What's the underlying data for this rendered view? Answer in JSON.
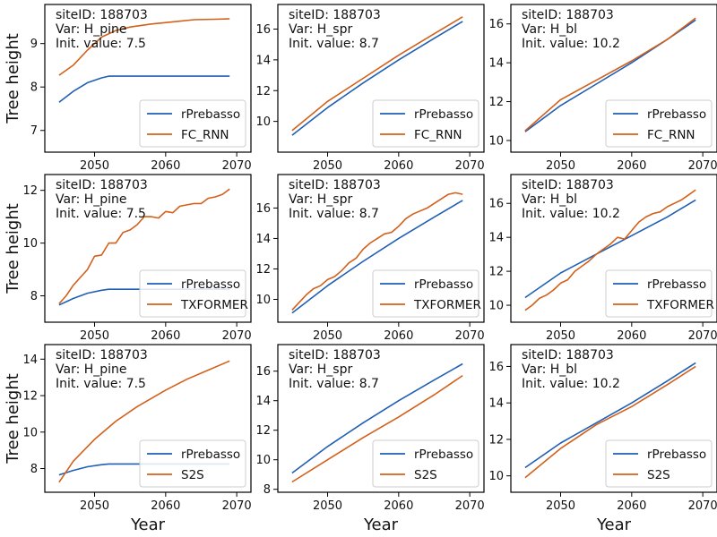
{
  "figure": {
    "xlabel": "Year",
    "ylabel": "Tree height",
    "site_label": "siteID: 188703",
    "series_colors": {
      "rPrebasso": "#1f5fb4",
      "model": "#d2601a"
    }
  },
  "chart_data": [
    {
      "type": "line",
      "row": 0,
      "col": 0,
      "annotations": [
        "siteID: 188703",
        "Var: H_pine",
        "Init. value: 7.5"
      ],
      "xlim": [
        2043,
        2072
      ],
      "ylim": [
        6.5,
        9.9
      ],
      "xticks": [
        2050,
        2060,
        2070
      ],
      "yticks": [
        7,
        8,
        9
      ],
      "xlabel": "",
      "ylabel": "Tree height",
      "legend_loc": "lower-right",
      "series": [
        {
          "name": "rPrebasso",
          "x": [
            2045,
            2047,
            2049,
            2051,
            2052,
            2055,
            2060,
            2065,
            2069
          ],
          "values": [
            7.65,
            7.9,
            8.1,
            8.21,
            8.25,
            8.25,
            8.25,
            8.25,
            8.25
          ]
        },
        {
          "name": "FC_RNN",
          "x": [
            2045,
            2047,
            2049,
            2051,
            2053,
            2055,
            2058,
            2061,
            2064,
            2067,
            2069
          ],
          "values": [
            8.27,
            8.5,
            8.85,
            9.15,
            9.3,
            9.38,
            9.45,
            9.5,
            9.55,
            9.56,
            9.57
          ]
        }
      ]
    },
    {
      "type": "line",
      "row": 0,
      "col": 1,
      "annotations": [
        "siteID: 188703",
        "Var: H_spr",
        "Init. value: 8.7"
      ],
      "xlim": [
        2043,
        2072
      ],
      "ylim": [
        8.0,
        17.6
      ],
      "xticks": [
        2050,
        2060,
        2070
      ],
      "yticks": [
        10,
        12,
        14,
        16
      ],
      "xlabel": "",
      "ylabel": "",
      "legend_loc": "lower-right",
      "series": [
        {
          "name": "rPrebasso",
          "x": [
            2045,
            2050,
            2055,
            2060,
            2065,
            2069
          ],
          "values": [
            9.1,
            10.9,
            12.5,
            14.0,
            15.4,
            16.5
          ]
        },
        {
          "name": "FC_RNN",
          "x": [
            2045,
            2050,
            2055,
            2060,
            2065,
            2069
          ],
          "values": [
            9.4,
            11.3,
            12.8,
            14.3,
            15.7,
            16.8
          ]
        }
      ]
    },
    {
      "type": "line",
      "row": 0,
      "col": 2,
      "annotations": [
        "siteID: 188703",
        "Var: H_bl",
        "Init. value: 10.2"
      ],
      "xlim": [
        2043,
        2072
      ],
      "ylim": [
        9.4,
        17.0
      ],
      "xticks": [
        2050,
        2060,
        2070
      ],
      "yticks": [
        10,
        12,
        14,
        16
      ],
      "xlabel": "",
      "ylabel": "",
      "legend_loc": "lower-right",
      "series": [
        {
          "name": "rPrebasso",
          "x": [
            2045,
            2050,
            2055,
            2060,
            2065,
            2069
          ],
          "values": [
            10.45,
            11.8,
            12.9,
            14.0,
            15.2,
            16.2
          ]
        },
        {
          "name": "FC_RNN",
          "x": [
            2045,
            2050,
            2055,
            2060,
            2065,
            2069
          ],
          "values": [
            10.5,
            12.1,
            13.1,
            14.1,
            15.2,
            16.3
          ]
        }
      ]
    },
    {
      "type": "line",
      "row": 1,
      "col": 0,
      "annotations": [
        "siteID: 188703",
        "Var: H_pine",
        "Init. value: 7.5"
      ],
      "xlim": [
        2043,
        2072
      ],
      "ylim": [
        7.0,
        12.6
      ],
      "xticks": [
        2050,
        2060,
        2070
      ],
      "yticks": [
        8,
        10,
        12
      ],
      "xlabel": "",
      "ylabel": "Tree height",
      "legend_loc": "lower-right",
      "series": [
        {
          "name": "rPrebasso",
          "x": [
            2045,
            2047,
            2049,
            2051,
            2052,
            2055,
            2060,
            2065,
            2069
          ],
          "values": [
            7.65,
            7.9,
            8.1,
            8.21,
            8.25,
            8.25,
            8.25,
            8.25,
            8.25
          ]
        },
        {
          "name": "TXFORMER",
          "x": [
            2045,
            2046,
            2047,
            2048,
            2049,
            2050,
            2051,
            2052,
            2053,
            2054,
            2055,
            2056,
            2057,
            2058,
            2059,
            2060,
            2061,
            2062,
            2063,
            2064,
            2065,
            2066,
            2067,
            2068,
            2069
          ],
          "values": [
            7.7,
            8.0,
            8.4,
            8.7,
            9.0,
            9.5,
            9.55,
            10.0,
            10.0,
            10.4,
            10.5,
            10.7,
            11.0,
            11.0,
            10.95,
            11.2,
            11.15,
            11.4,
            11.45,
            11.5,
            11.5,
            11.7,
            11.75,
            11.85,
            12.05
          ]
        }
      ]
    },
    {
      "type": "line",
      "row": 1,
      "col": 1,
      "annotations": [
        "siteID: 188703",
        "Var: H_spr",
        "Init. value: 8.7"
      ],
      "xlim": [
        2043,
        2072
      ],
      "ylim": [
        8.5,
        18.2
      ],
      "xticks": [
        2050,
        2060,
        2070
      ],
      "yticks": [
        10,
        12,
        14,
        16
      ],
      "xlabel": "",
      "ylabel": "",
      "legend_loc": "lower-right",
      "series": [
        {
          "name": "rPrebasso",
          "x": [
            2045,
            2050,
            2055,
            2060,
            2065,
            2069
          ],
          "values": [
            9.1,
            10.9,
            12.5,
            14.0,
            15.4,
            16.5
          ]
        },
        {
          "name": "TXFORMER",
          "x": [
            2045,
            2046,
            2047,
            2048,
            2049,
            2050,
            2051,
            2052,
            2053,
            2054,
            2055,
            2056,
            2057,
            2058,
            2059,
            2060,
            2061,
            2062,
            2063,
            2064,
            2065,
            2066,
            2067,
            2068,
            2069
          ],
          "values": [
            9.3,
            9.8,
            10.3,
            10.7,
            10.9,
            11.3,
            11.5,
            11.9,
            12.4,
            12.7,
            13.3,
            13.7,
            14.0,
            14.3,
            14.4,
            14.8,
            15.3,
            15.6,
            15.8,
            16.0,
            16.3,
            16.6,
            16.9,
            17.0,
            16.9
          ]
        }
      ]
    },
    {
      "type": "line",
      "row": 1,
      "col": 2,
      "annotations": [
        "siteID: 188703",
        "Var: H_bl",
        "Init. value: 10.2"
      ],
      "xlim": [
        2043,
        2072
      ],
      "ylim": [
        9.0,
        17.7
      ],
      "xticks": [
        2050,
        2060,
        2070
      ],
      "yticks": [
        10,
        12,
        14,
        16
      ],
      "xlabel": "",
      "ylabel": "",
      "legend_loc": "lower-right",
      "series": [
        {
          "name": "rPrebasso",
          "x": [
            2045,
            2050,
            2055,
            2060,
            2065,
            2069
          ],
          "values": [
            10.45,
            11.9,
            13.0,
            14.1,
            15.2,
            16.2
          ]
        },
        {
          "name": "TXFORMER",
          "x": [
            2045,
            2046,
            2047,
            2048,
            2049,
            2050,
            2051,
            2052,
            2053,
            2054,
            2055,
            2056,
            2057,
            2058,
            2059,
            2060,
            2061,
            2062,
            2063,
            2064,
            2065,
            2066,
            2067,
            2068,
            2069
          ],
          "values": [
            9.7,
            10.0,
            10.4,
            10.6,
            10.9,
            11.3,
            11.5,
            12.0,
            12.3,
            12.6,
            13.0,
            13.3,
            13.6,
            14.0,
            13.9,
            14.4,
            14.9,
            15.2,
            15.4,
            15.5,
            15.8,
            16.0,
            16.2,
            16.5,
            16.8
          ]
        }
      ]
    },
    {
      "type": "line",
      "row": 2,
      "col": 0,
      "annotations": [
        "siteID: 188703",
        "Var: H_pine",
        "Init. value: 7.5"
      ],
      "xlim": [
        2043,
        2072
      ],
      "ylim": [
        6.7,
        14.8
      ],
      "xticks": [
        2050,
        2060,
        2070
      ],
      "yticks": [
        8,
        10,
        12,
        14
      ],
      "xlabel": "Year",
      "ylabel": "Tree height",
      "legend_loc": "lower-right",
      "series": [
        {
          "name": "rPrebasso",
          "x": [
            2045,
            2047,
            2049,
            2051,
            2052,
            2055,
            2060,
            2065,
            2069
          ],
          "values": [
            7.65,
            7.9,
            8.1,
            8.21,
            8.25,
            8.25,
            8.25,
            8.25,
            8.25
          ]
        },
        {
          "name": "S2S",
          "x": [
            2045,
            2047,
            2050,
            2053,
            2056,
            2060,
            2063,
            2066,
            2069
          ],
          "values": [
            7.25,
            8.4,
            9.6,
            10.6,
            11.4,
            12.3,
            12.9,
            13.4,
            13.9
          ]
        }
      ]
    },
    {
      "type": "line",
      "row": 2,
      "col": 1,
      "annotations": [
        "siteID: 188703",
        "Var: H_spr",
        "Init. value: 8.7"
      ],
      "xlim": [
        2043,
        2072
      ],
      "ylim": [
        7.8,
        17.8
      ],
      "xticks": [
        2050,
        2060,
        2070
      ],
      "yticks": [
        8,
        10,
        12,
        14,
        16
      ],
      "xlabel": "Year",
      "ylabel": "",
      "legend_loc": "lower-right",
      "series": [
        {
          "name": "rPrebasso",
          "x": [
            2045,
            2050,
            2055,
            2060,
            2065,
            2069
          ],
          "values": [
            9.1,
            10.9,
            12.5,
            14.0,
            15.4,
            16.5
          ]
        },
        {
          "name": "S2S",
          "x": [
            2045,
            2050,
            2055,
            2060,
            2065,
            2069
          ],
          "values": [
            8.5,
            10.0,
            11.5,
            12.9,
            14.4,
            15.7
          ]
        }
      ]
    },
    {
      "type": "line",
      "row": 2,
      "col": 2,
      "annotations": [
        "siteID: 188703",
        "Var: H_bl",
        "Init. value: 10.2"
      ],
      "xlim": [
        2043,
        2072
      ],
      "ylim": [
        9.1,
        17.2
      ],
      "xticks": [
        2050,
        2060,
        2070
      ],
      "yticks": [
        10,
        12,
        14,
        16
      ],
      "xlabel": "Year",
      "ylabel": "",
      "legend_loc": "lower-right",
      "series": [
        {
          "name": "rPrebasso",
          "x": [
            2045,
            2050,
            2055,
            2060,
            2065,
            2069
          ],
          "values": [
            10.45,
            11.8,
            12.9,
            14.0,
            15.2,
            16.2
          ]
        },
        {
          "name": "S2S",
          "x": [
            2045,
            2050,
            2055,
            2060,
            2065,
            2069
          ],
          "values": [
            9.9,
            11.5,
            12.8,
            13.8,
            15.0,
            16.0
          ]
        }
      ]
    }
  ]
}
